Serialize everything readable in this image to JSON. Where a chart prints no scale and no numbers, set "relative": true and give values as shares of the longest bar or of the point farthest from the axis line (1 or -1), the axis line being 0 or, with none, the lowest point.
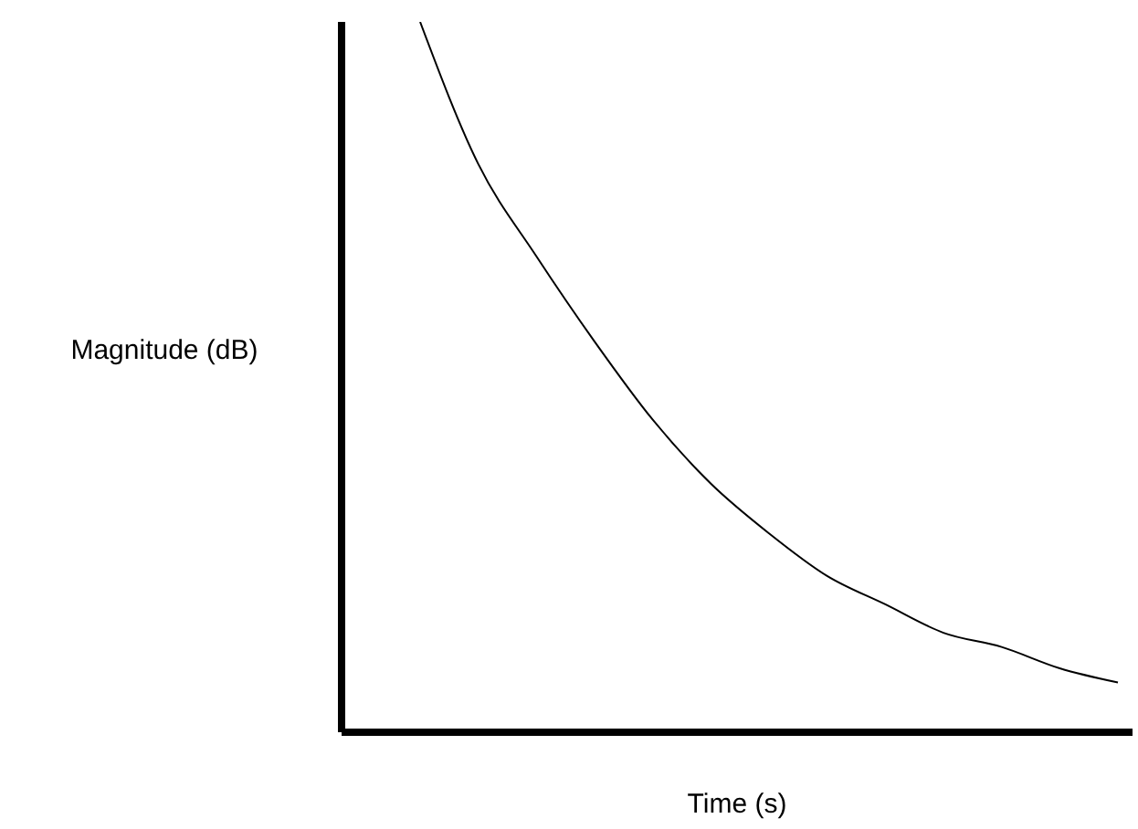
{
  "chart_data": {
    "type": "line",
    "xlabel": "Time (s)",
    "ylabel": "Magnitude (dB)",
    "relative": true,
    "categories": [
      null,
      null,
      null,
      null,
      null,
      null,
      null,
      null,
      null,
      null,
      null,
      null,
      null
    ],
    "series": [
      {
        "color": "#000000",
        "values": [
          1,
          0.8,
          0.67,
          0.55,
          0.44,
          0.35,
          0.28,
          0.22,
          0.18,
          0.14,
          0.12,
          0.09,
          0.07
        ]
      }
    ]
  }
}
